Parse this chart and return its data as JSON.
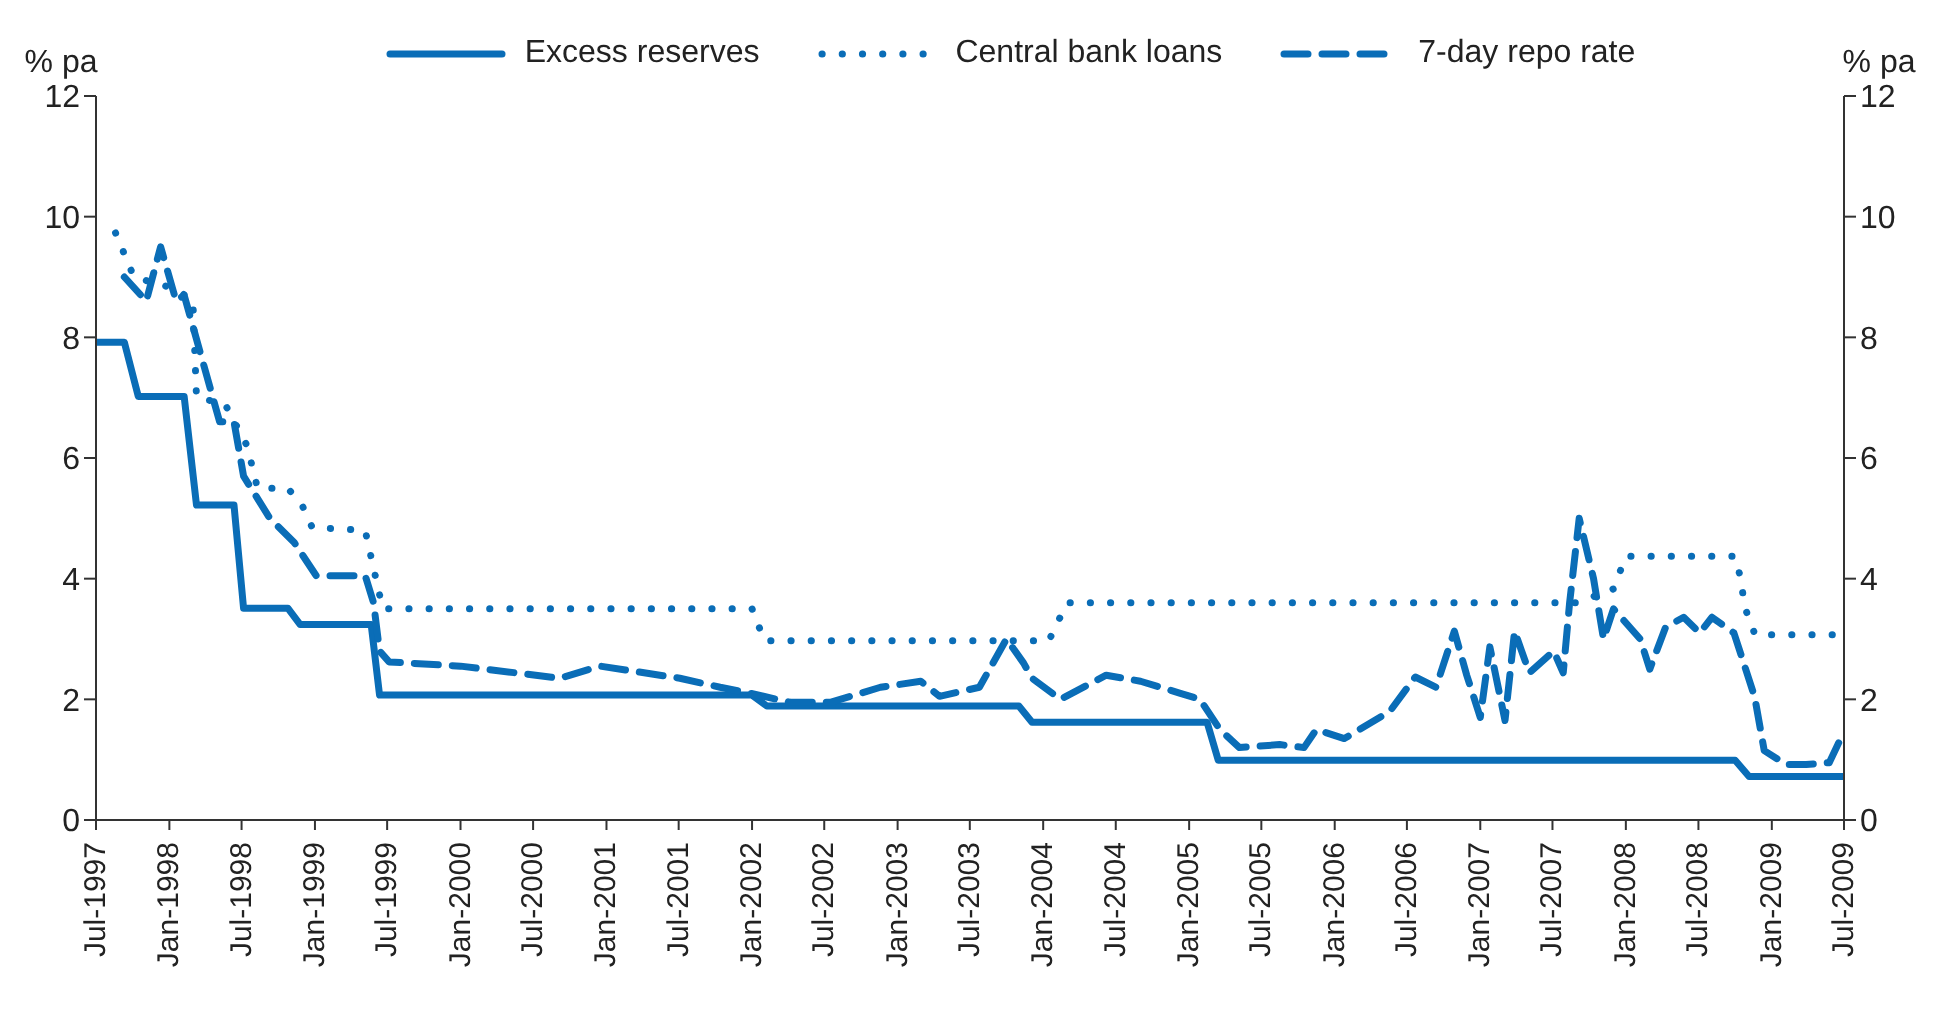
{
  "chart_data": {
    "type": "line",
    "ylabel": "% pa",
    "y2label": "% pa",
    "xlim": [
      "1997-07",
      "2009-07"
    ],
    "xticks": [
      {
        "value": "1997-07",
        "label": "Jul-1997"
      },
      {
        "value": "1998-01",
        "label": "Jan-1998"
      },
      {
        "value": "1998-07",
        "label": "Jul-1998"
      },
      {
        "value": "1999-01",
        "label": "Jan-1999"
      },
      {
        "value": "1999-07",
        "label": "Jul-1999"
      },
      {
        "value": "2000-01",
        "label": "Jan-2000"
      },
      {
        "value": "2000-07",
        "label": "Jul-2000"
      },
      {
        "value": "2001-01",
        "label": "Jan-2001"
      },
      {
        "value": "2001-07",
        "label": "Jul-2001"
      },
      {
        "value": "2002-01",
        "label": "Jan-2002"
      },
      {
        "value": "2002-07",
        "label": "Jul-2002"
      },
      {
        "value": "2003-01",
        "label": "Jan-2003"
      },
      {
        "value": "2003-07",
        "label": "Jul-2003"
      },
      {
        "value": "2004-01",
        "label": "Jan-2004"
      },
      {
        "value": "2004-07",
        "label": "Jul-2004"
      },
      {
        "value": "2005-01",
        "label": "Jan-2005"
      },
      {
        "value": "2005-07",
        "label": "Jul-2005"
      },
      {
        "value": "2006-01",
        "label": "Jan-2006"
      },
      {
        "value": "2006-07",
        "label": "Jul-2006"
      },
      {
        "value": "2007-01",
        "label": "Jan-2007"
      },
      {
        "value": "2007-07",
        "label": "Jul-2007"
      },
      {
        "value": "2008-01",
        "label": "Jan-2008"
      },
      {
        "value": "2008-07",
        "label": "Jul-2008"
      },
      {
        "value": "2009-01",
        "label": "Jan-2009"
      },
      {
        "value": "2009-07",
        "label": "Jul-2009"
      }
    ],
    "ylim": [
      0,
      12
    ],
    "yticks": [
      0,
      2,
      4,
      6,
      8,
      10,
      12
    ],
    "y2lim": [
      0,
      12
    ],
    "y2ticks": [
      0,
      2,
      4,
      6,
      8,
      10,
      12
    ],
    "legend": "top",
    "marker": "none",
    "series": [
      {
        "name": "Excess reserves",
        "color": "#0a6db7",
        "line_style": "solid",
        "x": [
          "1997-07-01",
          "1997-09-10",
          "1997-10-15",
          "1998-02-07",
          "1998-03-10",
          "1998-06-12",
          "1998-07-06",
          "1998-10-25",
          "1998-11-25",
          "1999-05-22",
          "1999-06-12",
          "2002-01-01",
          "2002-02-07",
          "2003-11-01",
          "2003-12-04",
          "2005-02-15",
          "2005-03-15",
          "2008-10-01",
          "2008-11-05",
          "2009-07-01"
        ],
        "values": [
          7.92,
          7.92,
          7.02,
          7.02,
          5.22,
          5.22,
          3.51,
          3.51,
          3.24,
          3.24,
          2.07,
          2.07,
          1.89,
          1.89,
          1.62,
          1.62,
          0.99,
          0.99,
          0.72,
          0.72
        ]
      },
      {
        "name": "Central bank loans",
        "color": "#0a6db7",
        "line_style": "dotted",
        "x": [
          "1997-08-19",
          "1997-10-04",
          "1998-01-18",
          "1998-03-01",
          "1998-03-10",
          "1998-05-20",
          "1998-07-15",
          "1998-08-10",
          "1998-10-25",
          "1998-12-01",
          "1998-12-25",
          "1999-05-07",
          "1999-05-22",
          "1999-06-20",
          "2002-01-01",
          "2002-02-01",
          "2004-01-15",
          "2004-03-01",
          "2007-09-01",
          "2007-12-01",
          "2008-01-01",
          "2008-10-01",
          "2008-10-15",
          "2008-10-25",
          "2008-11-20",
          "2009-07-01"
        ],
        "values": [
          9.73,
          9.0,
          8.8,
          8.6,
          7.0,
          6.9,
          6.2,
          5.5,
          5.5,
          5.2,
          4.85,
          4.8,
          4.35,
          3.5,
          3.5,
          2.97,
          2.97,
          3.6,
          3.6,
          3.83,
          4.37,
          4.37,
          4.0,
          3.53,
          3.07,
          3.07
        ]
      },
      {
        "name": "7-day repo rate",
        "color": "#0a6db7",
        "line_style": "dashed",
        "x": [
          "1997-09-10",
          "1997-11-04",
          "1997-12-10",
          "1998-01-18",
          "1998-02-07",
          "1998-05-07",
          "1998-06-12",
          "1998-07-06",
          "1998-09-10",
          "1998-11-10",
          "1999-01-04",
          "1999-05-07",
          "1999-05-28",
          "1999-06-12",
          "1999-07-06",
          "2000-01-01",
          "2000-09-06",
          "2000-12-16",
          "2001-07-04",
          "2001-10-13",
          "2001-12-28",
          "2002-04-07",
          "2002-07-16",
          "2002-11-19",
          "2003-02-28",
          "2003-04-16",
          "2003-07-25",
          "2003-10-01",
          "2003-11-13",
          "2003-12-04",
          "2004-02-13",
          "2004-06-07",
          "2004-09-01",
          "2004-12-10",
          "2005-01-28",
          "2005-03-19",
          "2005-05-07",
          "2005-08-16",
          "2005-10-16",
          "2005-11-16",
          "2006-01-25",
          "2006-05-19",
          "2006-07-22",
          "2006-09-12",
          "2006-10-28",
          "2006-11-28",
          "2007-01-01",
          "2007-01-25",
          "2007-03-04",
          "2007-03-28",
          "2007-05-04",
          "2007-07-04",
          "2007-07-28",
          "2007-08-13",
          "2007-09-06",
          "2007-10-12",
          "2007-11-06",
          "2007-12-01",
          "2008-02-06",
          "2008-03-01",
          "2008-04-10",
          "2008-05-25",
          "2008-07-04",
          "2008-08-04",
          "2008-09-28",
          "2008-11-19",
          "2008-12-13",
          "2009-02-06",
          "2009-03-28",
          "2009-05-25",
          "2009-06-25"
        ],
        "values": [
          9.0,
          8.6,
          9.5,
          8.6,
          8.7,
          6.6,
          6.6,
          5.7,
          5.0,
          4.6,
          4.05,
          4.05,
          3.6,
          2.8,
          2.62,
          2.55,
          2.35,
          2.55,
          2.35,
          2.2,
          2.1,
          1.95,
          1.95,
          2.2,
          2.3,
          2.05,
          2.2,
          3.0,
          2.6,
          2.35,
          2.0,
          2.4,
          2.3,
          2.1,
          2.0,
          1.5,
          1.2,
          1.25,
          1.2,
          1.5,
          1.35,
          1.8,
          2.37,
          2.2,
          3.13,
          2.4,
          1.7,
          2.87,
          1.65,
          3.13,
          2.44,
          2.8,
          2.44,
          3.6,
          5.0,
          4.0,
          3.0,
          3.5,
          3.0,
          2.5,
          3.2,
          3.36,
          3.1,
          3.36,
          3.1,
          2.04,
          1.15,
          0.92,
          0.92,
          0.95,
          1.38
        ]
      }
    ]
  }
}
